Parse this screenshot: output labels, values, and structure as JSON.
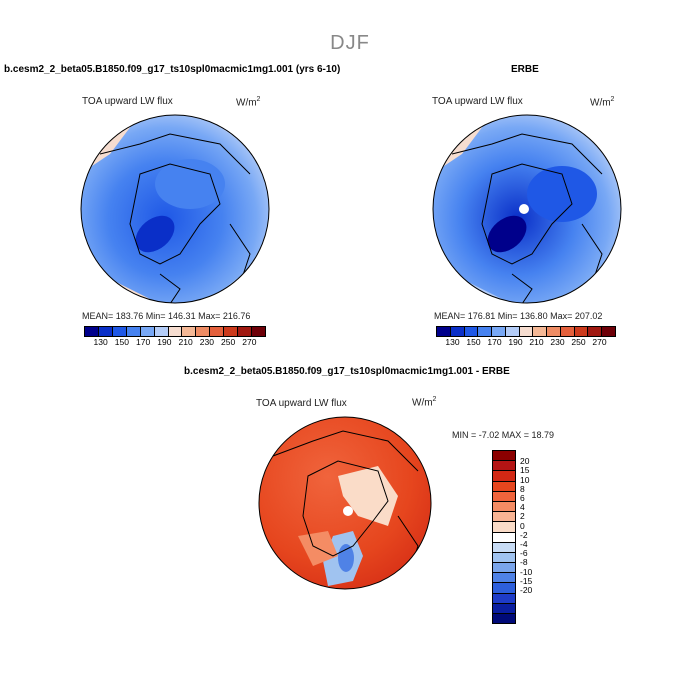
{
  "season": "DJF",
  "model_panel": {
    "title": "b.cesm2_2_beta05.B1850.f09_g17_ts10spl0macmic1mg1.001 (yrs 6-10)",
    "variable": "TOA upward LW flux",
    "units": "W/m",
    "units_exp": "2",
    "stats": "MEAN= 183.76   Min= 146.31   Max= 216.76"
  },
  "obs_panel": {
    "title": "ERBE",
    "variable": "TOA upward LW flux",
    "units": "W/m",
    "units_exp": "2",
    "stats": "MEAN= 176.81   Min= 136.80   Max= 207.02"
  },
  "diff_panel": {
    "title": "b.cesm2_2_beta05.B1850.f09_g17_ts10spl0macmic1mg1.001 - ERBE",
    "variable": "TOA upward LW flux",
    "units": "W/m",
    "units_exp": "2",
    "stats": "MIN =  -7.02  MAX =  18.79"
  },
  "abs_colorbar": {
    "colors": [
      "#00008b",
      "#0a2fc8",
      "#1f58e6",
      "#4682f0",
      "#78a8f5",
      "#b4cdf8",
      "#f6ddd0",
      "#f4b896",
      "#ee8c64",
      "#e4603c",
      "#cc3a1c",
      "#a01810",
      "#6e0008"
    ],
    "ticks": [
      "130",
      "150",
      "170",
      "190",
      "210",
      "230",
      "250",
      "270"
    ]
  },
  "diff_colorbar": {
    "colors": [
      "#8b0000",
      "#b41414",
      "#d22814",
      "#e6461e",
      "#f0643c",
      "#f48c64",
      "#f8b494",
      "#fadcc8",
      "#ffffff",
      "#c8dcf5",
      "#a0c3f0",
      "#7aa5eb",
      "#4f82e6",
      "#2d5fdc",
      "#1e3cc8",
      "#0a1ea0",
      "#000a78"
    ],
    "ticks": [
      "20",
      "15",
      "10",
      "8",
      "6",
      "4",
      "2",
      "0",
      "-2",
      "-4",
      "-6",
      "-8",
      "-10",
      "-15",
      "-20"
    ]
  }
}
